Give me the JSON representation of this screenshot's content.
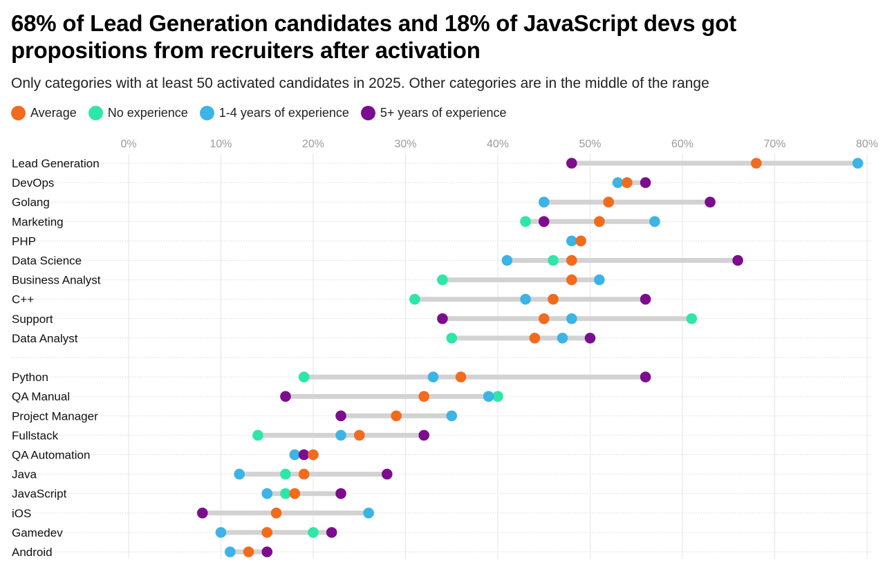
{
  "chart_data": {
    "type": "dot-range",
    "title": "68% of Lead Generation candidates and 18% of JavaScript devs got propositions from recruiters after activation",
    "subtitle": "Only categories with at least 50 activated candidates in 2025. Other categories are in the middle of the range",
    "xlim": [
      0,
      80
    ],
    "x_ticks": [
      0,
      10,
      20,
      30,
      40,
      50,
      60,
      70,
      80
    ],
    "x_tick_labels": [
      "0%",
      "10%",
      "20%",
      "30%",
      "40%",
      "50%",
      "60%",
      "70%",
      "80%"
    ],
    "legend_position": "top-left",
    "grid": true,
    "series": [
      {
        "key": "avg",
        "name": "Average",
        "color": "#f26b1d"
      },
      {
        "key": "none",
        "name": "No experience",
        "color": "#2ee6a8"
      },
      {
        "key": "mid",
        "name": "1-4 years of experience",
        "color": "#3cb4e5"
      },
      {
        "key": "senior",
        "name": "5+ years of experience",
        "color": "#7b0d8e"
      }
    ],
    "categories": [
      {
        "name": "Lead Generation",
        "avg": 68,
        "none": null,
        "mid": 79,
        "senior": 48
      },
      {
        "name": "DevOps",
        "avg": 54,
        "none": null,
        "mid": 53,
        "senior": 56
      },
      {
        "name": "Golang",
        "avg": 52,
        "none": null,
        "mid": 45,
        "senior": 63
      },
      {
        "name": "Marketing",
        "avg": 51,
        "none": 43,
        "mid": 57,
        "senior": 45
      },
      {
        "name": "PHP",
        "avg": 49,
        "none": null,
        "mid": 48,
        "senior": null
      },
      {
        "name": "Data Science",
        "avg": 48,
        "none": 46,
        "mid": 41,
        "senior": 66
      },
      {
        "name": "Business Analyst",
        "avg": 48,
        "none": 34,
        "mid": 51,
        "senior": null
      },
      {
        "name": "C++",
        "avg": 46,
        "none": 31,
        "mid": 43,
        "senior": 56
      },
      {
        "name": "Support",
        "avg": 45,
        "none": 61,
        "mid": 48,
        "senior": 34
      },
      {
        "name": "Data Analyst",
        "avg": 44,
        "none": 35,
        "mid": 47,
        "senior": 50
      },
      {
        "name": "Python",
        "avg": 36,
        "none": 19,
        "mid": 33,
        "senior": 56
      },
      {
        "name": "QA Manual",
        "avg": 32,
        "none": 40,
        "mid": 39,
        "senior": 17
      },
      {
        "name": "Project Manager",
        "avg": 29,
        "none": null,
        "mid": 35,
        "senior": 23
      },
      {
        "name": "Fullstack",
        "avg": 25,
        "none": 14,
        "mid": 23,
        "senior": 32
      },
      {
        "name": "QA Automation",
        "avg": 20,
        "none": null,
        "mid": 18,
        "senior": 19
      },
      {
        "name": "Java",
        "avg": 19,
        "none": 17,
        "mid": 12,
        "senior": 28
      },
      {
        "name": "JavaScript",
        "avg": 18,
        "none": 17,
        "mid": 15,
        "senior": 23
      },
      {
        "name": "iOS",
        "avg": 16,
        "none": null,
        "mid": 26,
        "senior": 8
      },
      {
        "name": "Gamedev",
        "avg": 15,
        "none": 20,
        "mid": 10,
        "senior": 22
      },
      {
        "name": "Android",
        "avg": 13,
        "none": null,
        "mid": 11,
        "senior": 15
      }
    ],
    "group_break_after": 9
  }
}
